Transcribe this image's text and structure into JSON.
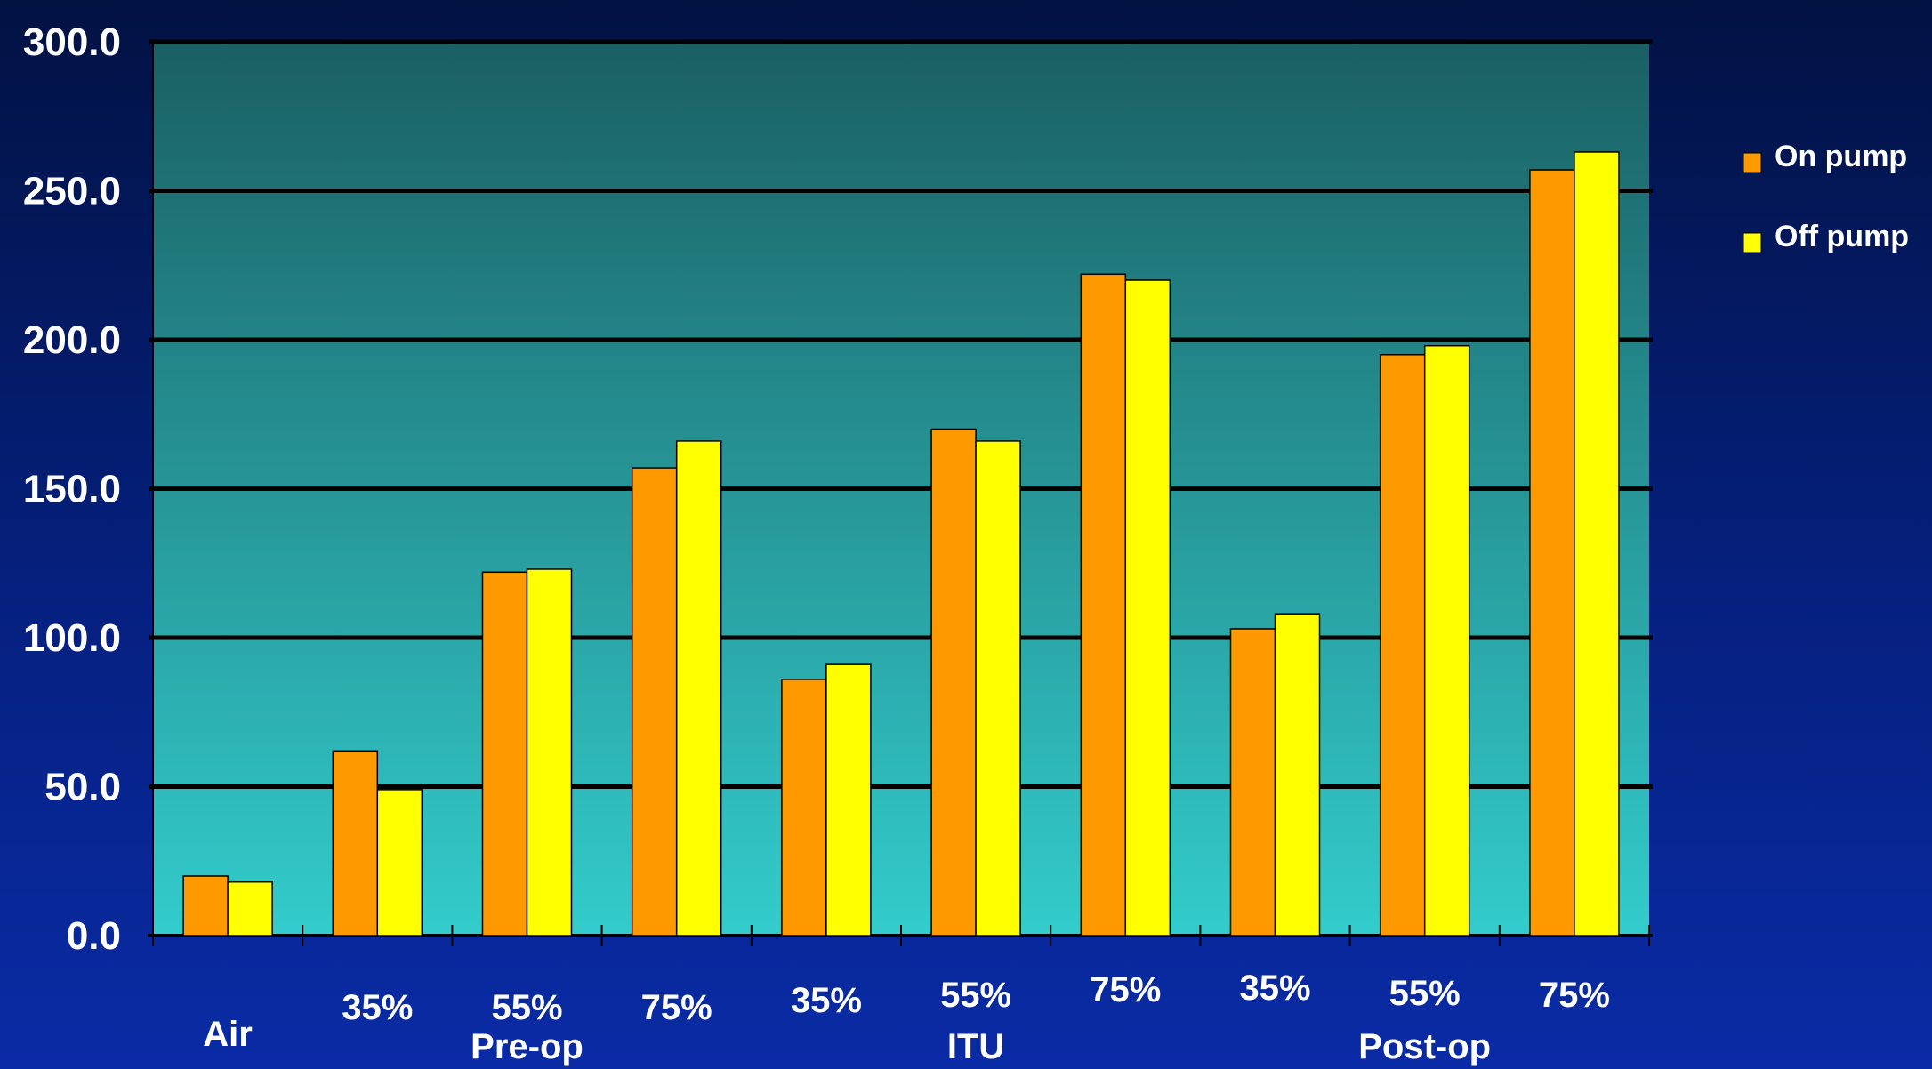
{
  "chart_data": {
    "type": "bar",
    "ylim": [
      0,
      300
    ],
    "y_ticks": [
      "0.0",
      "50.0",
      "100.0",
      "150.0",
      "200.0",
      "250.0",
      "300.0"
    ],
    "y_tick_values": [
      0,
      50,
      100,
      150,
      200,
      250,
      300
    ],
    "categories": [
      "Air",
      "35%",
      "55%",
      "75%",
      "35%",
      "55%",
      "75%",
      "35%",
      "55%",
      "75%"
    ],
    "groups": [
      {
        "label": "Pre-op",
        "category_span": [
          1,
          3
        ]
      },
      {
        "label": "ITU",
        "category_span": [
          4,
          6
        ]
      },
      {
        "label": "Post-op",
        "category_span": [
          7,
          9
        ]
      }
    ],
    "series": [
      {
        "name": "On pump",
        "color": "#ff9900",
        "values": [
          20,
          62,
          122,
          157,
          86,
          170,
          222,
          103,
          195,
          257
        ]
      },
      {
        "name": "Off pump",
        "color": "#ffff00",
        "values": [
          18,
          49,
          123,
          166,
          91,
          166,
          220,
          108,
          198,
          263
        ]
      }
    ],
    "grid": true,
    "legend_position": "right",
    "plot_background": [
      "#1a5f63",
      "#33cccc"
    ]
  }
}
